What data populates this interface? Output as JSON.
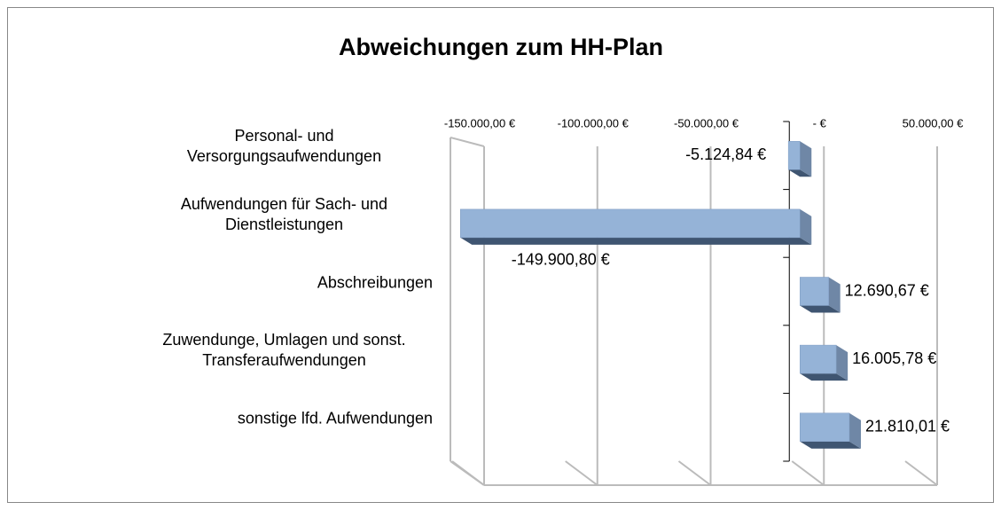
{
  "chart_data": {
    "type": "bar3d_horizontal",
    "title": "Abweichungen zum HH-Plan",
    "categories": [
      "Personal- und Versorgungsaufwendungen",
      "Aufwendungen für Sach- und Dienstleistungen",
      "Abschreibungen",
      "Zuwendunge, Umlagen und sonst. Transferaufwendungen",
      "sonstige lfd. Aufwendungen"
    ],
    "values": [
      -5124.84,
      -149900.8,
      12690.67,
      16005.78,
      21810.01
    ],
    "value_labels": [
      "-5.124,84 €",
      "-149.900,80 €",
      "12.690,67 €",
      "16.005,78 €",
      "21.810,01 €"
    ],
    "color": "#95b3d7",
    "xlim": [
      -150000,
      50000
    ],
    "xticks": [
      {
        "value": -150000,
        "label": "-150.000,00 €"
      },
      {
        "value": -100000,
        "label": "-100.000,00 €"
      },
      {
        "value": -50000,
        "label": "-50.000,00 €"
      },
      {
        "value": 0,
        "label": "- €"
      },
      {
        "value": 50000,
        "label": "50.000,00 €"
      }
    ],
    "grid": true
  }
}
